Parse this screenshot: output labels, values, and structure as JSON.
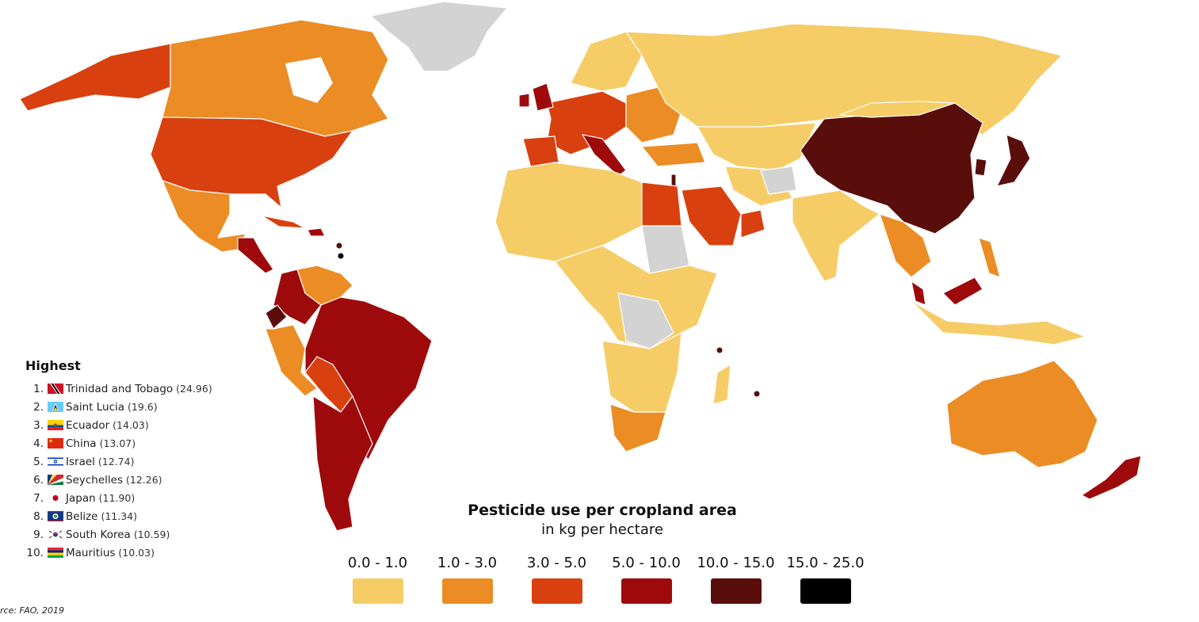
{
  "legend": {
    "title": "Pesticide use per cropland area",
    "subtitle": "in kg per hectare",
    "bins": [
      {
        "label": "0.0 - 1.0",
        "color": "#f6cc67"
      },
      {
        "label": "1.0 - 3.0",
        "color": "#ec8c24"
      },
      {
        "label": "3.0 - 5.0",
        "color": "#d9400f"
      },
      {
        "label": "5.0 - 10.0",
        "color": "#9e0a0b"
      },
      {
        "label": "10.0 - 15.0",
        "color": "#5a0e0b"
      },
      {
        "label": "15.0 - 25.0",
        "color": "#000000"
      }
    ],
    "no_data_color": "#d3d3d3"
  },
  "highest": {
    "title": "Highest",
    "items": [
      {
        "rank": "1.",
        "country": "Trinidad and Tobago",
        "value": "(24.96)",
        "flag": "trinidad-and-tobago-flag"
      },
      {
        "rank": "2.",
        "country": "Saint Lucia",
        "value": "(19.6)",
        "flag": "saint-lucia-flag"
      },
      {
        "rank": "3.",
        "country": "Ecuador",
        "value": "(14.03)",
        "flag": "ecuador-flag"
      },
      {
        "rank": "4.",
        "country": "China",
        "value": "(13.07)",
        "flag": "china-flag"
      },
      {
        "rank": "5.",
        "country": "Israel",
        "value": "(12.74)",
        "flag": "israel-flag"
      },
      {
        "rank": "6.",
        "country": "Seychelles",
        "value": "(12.26)",
        "flag": "seychelles-flag"
      },
      {
        "rank": "7.",
        "country": "Japan",
        "value": "(11.90)",
        "flag": "japan-flag"
      },
      {
        "rank": "8.",
        "country": "Belize",
        "value": "(11.34)",
        "flag": "belize-flag"
      },
      {
        "rank": "9.",
        "country": "South Korea",
        "value": "(10.59)",
        "flag": "south-korea-flag"
      },
      {
        "rank": "10.",
        "country": "Mauritius",
        "value": "(10.03)",
        "flag": "mauritius-flag"
      }
    ]
  },
  "source": "rce: FAO, 2019"
}
